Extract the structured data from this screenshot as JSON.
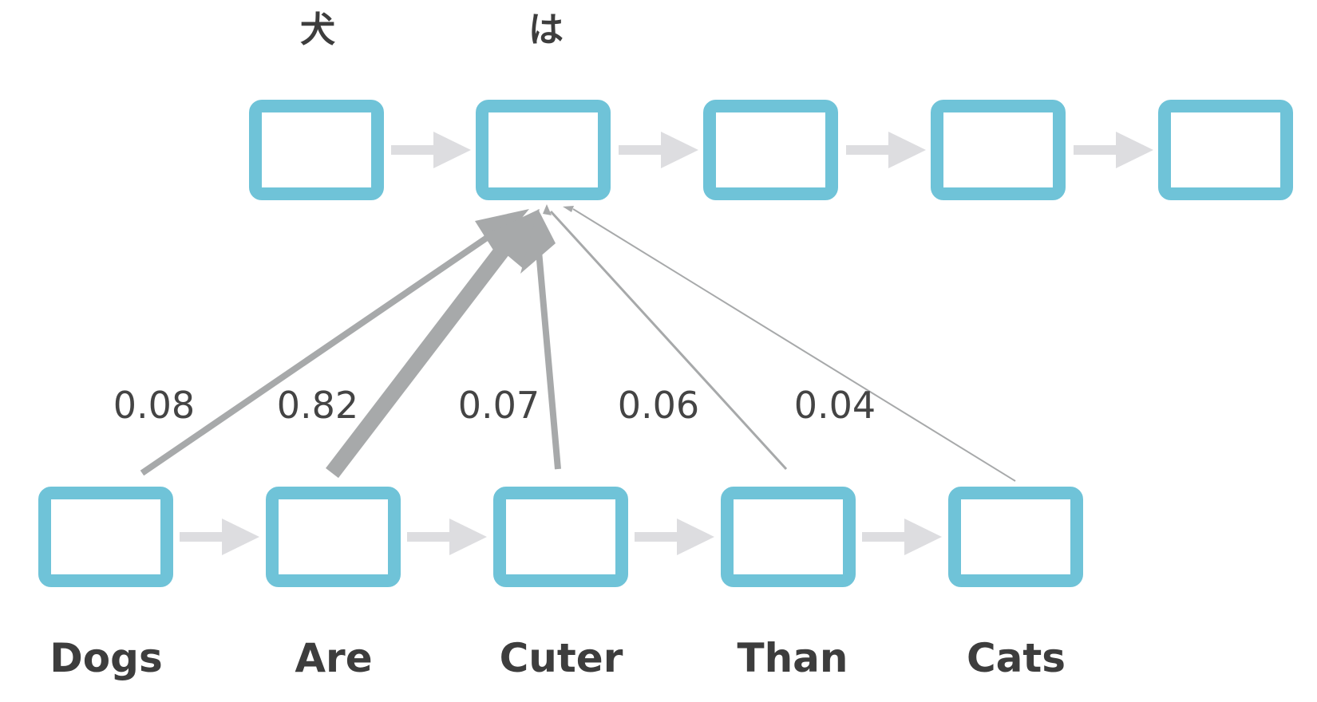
{
  "diagram": {
    "decoder_outputs": [
      "犬",
      "は"
    ],
    "decoder_cell_count": 5,
    "encoder_words": [
      "Dogs",
      "Are",
      "Cuter",
      "Than",
      "Cats"
    ],
    "attention_weights": [
      "0.08",
      "0.82",
      "0.07",
      "0.06",
      "0.04"
    ],
    "attention_target_cell": 1,
    "colors": {
      "cell_border": "#6fc3d8",
      "chain_arrow": "#dddde0",
      "attention_arrow": "#a7a9aa",
      "text": "#3d3d3d"
    }
  }
}
